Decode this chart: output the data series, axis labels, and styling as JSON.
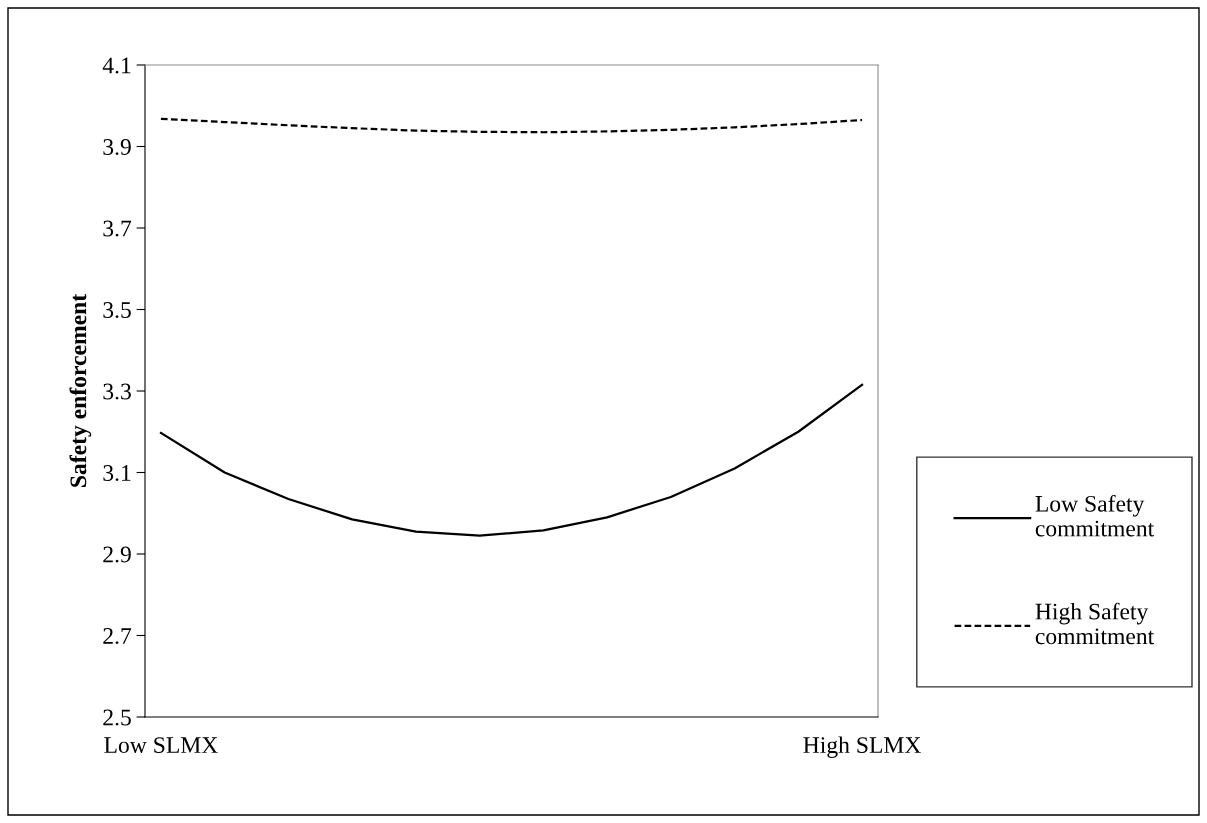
{
  "chart_data": {
    "type": "line",
    "ylabel": "Safety enforcement",
    "categories": [
      "Low SLMX",
      null,
      null,
      null,
      null,
      null,
      null,
      null,
      null,
      null,
      null,
      "High SLMX"
    ],
    "series": [
      {
        "name": "Low Safety commitment",
        "color": "#000000",
        "line_style": "solid",
        "values": [
          3.197,
          3.1,
          3.035,
          2.985,
          2.955,
          2.945,
          2.958,
          2.99,
          3.04,
          3.11,
          3.2,
          3.315
        ]
      },
      {
        "name": "High Safety commitment",
        "color": "#000000",
        "line_style": "dashed",
        "values": [
          3.968,
          3.96,
          3.952,
          3.945,
          3.939,
          3.936,
          3.935,
          3.937,
          3.941,
          3.947,
          3.955,
          3.965
        ]
      }
    ],
    "ylim": [
      2.5,
      4.1
    ],
    "yticks": [
      2.5,
      2.7,
      2.9,
      3.1,
      3.3,
      3.5,
      3.7,
      3.9,
      4.1
    ],
    "grid": false,
    "legend": "right",
    "marker": "none"
  }
}
